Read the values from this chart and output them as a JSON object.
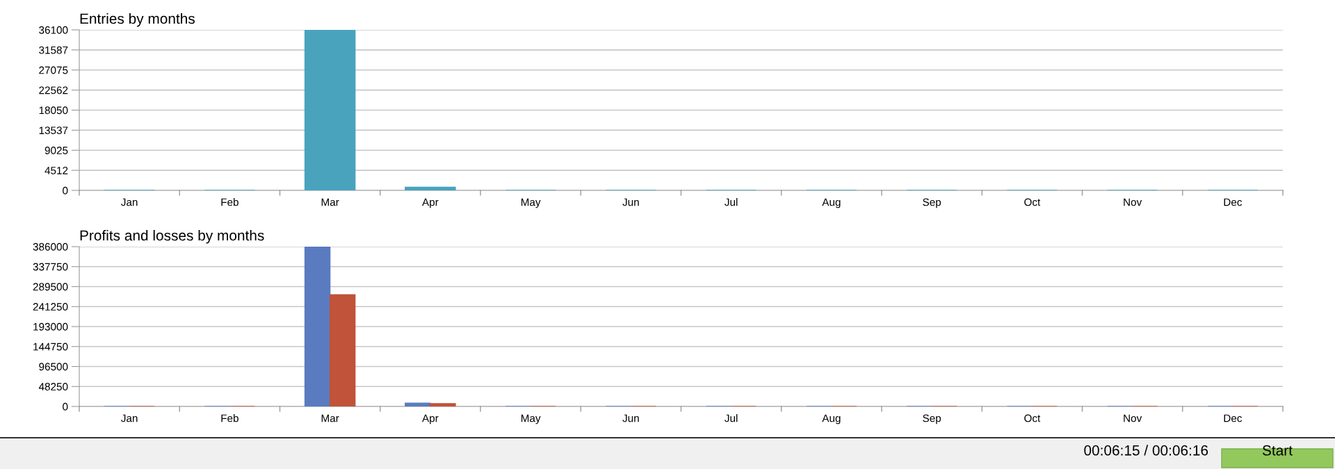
{
  "chart_data": [
    {
      "type": "bar",
      "title": "Entries by months",
      "categories": [
        "Jan",
        "Feb",
        "Mar",
        "Apr",
        "May",
        "Jun",
        "Jul",
        "Aug",
        "Sep",
        "Oct",
        "Nov",
        "Dec"
      ],
      "series": [
        {
          "color": "#4aa3bd",
          "values": [
            0,
            0,
            36100,
            700,
            0,
            0,
            0,
            0,
            0,
            0,
            0,
            0
          ]
        }
      ],
      "ylim": [
        0,
        36100
      ],
      "yticks": [
        0,
        4512,
        9025,
        13537,
        18050,
        22562,
        27075,
        31587,
        36100
      ],
      "grid": "y"
    },
    {
      "type": "bar",
      "title": "Profits and losses by months",
      "categories": [
        "Jan",
        "Feb",
        "Mar",
        "Apr",
        "May",
        "Jun",
        "Jul",
        "Aug",
        "Sep",
        "Oct",
        "Nov",
        "Dec"
      ],
      "series": [
        {
          "color": "#5a7bc0",
          "values": [
            0,
            0,
            386000,
            8000,
            0,
            0,
            0,
            0,
            0,
            0,
            0,
            0
          ]
        },
        {
          "color": "#c0533a",
          "values": [
            0,
            0,
            270000,
            7000,
            0,
            0,
            0,
            0,
            0,
            0,
            0,
            0
          ]
        }
      ],
      "ylim": [
        0,
        386000
      ],
      "yticks": [
        0,
        48250,
        96500,
        144750,
        193000,
        241250,
        289500,
        337750,
        386000
      ],
      "grid": "y",
      "annotations": [
        "00:06:15 / 00:06:16",
        "Start"
      ]
    }
  ]
}
